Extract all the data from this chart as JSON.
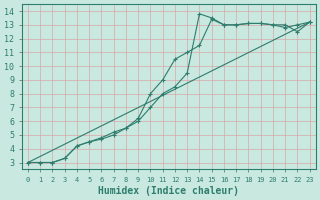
{
  "xlabel": "Humidex (Indice chaleur)",
  "ylabel": "",
  "xlim": [
    -0.5,
    23.5
  ],
  "ylim": [
    2.5,
    14.5
  ],
  "xticks": [
    0,
    1,
    2,
    3,
    4,
    5,
    6,
    7,
    8,
    9,
    10,
    11,
    12,
    13,
    14,
    15,
    16,
    17,
    18,
    19,
    20,
    21,
    22,
    23
  ],
  "yticks": [
    3,
    4,
    5,
    6,
    7,
    8,
    9,
    10,
    11,
    12,
    13,
    14
  ],
  "bg_color": "#c8e8e0",
  "grid_color": "#d8a8a8",
  "line_color": "#2e7d6d",
  "line1_x": [
    0,
    1,
    2,
    3,
    4,
    5,
    6,
    7,
    8,
    9,
    10,
    11,
    12,
    13,
    14,
    15,
    16,
    17,
    18,
    19,
    20,
    21,
    22,
    23
  ],
  "line1_y": [
    3.0,
    3.0,
    3.0,
    3.3,
    4.2,
    4.5,
    4.7,
    5.0,
    5.5,
    6.0,
    7.0,
    8.0,
    8.5,
    9.5,
    13.8,
    13.5,
    13.0,
    13.0,
    13.1,
    13.1,
    13.0,
    13.0,
    12.5,
    13.2
  ],
  "line2_x": [
    0,
    1,
    2,
    3,
    4,
    5,
    6,
    7,
    8,
    9,
    10,
    11,
    12,
    13,
    14,
    15,
    16,
    17,
    18,
    19,
    20,
    21,
    22,
    23
  ],
  "line2_y": [
    3.0,
    3.0,
    3.0,
    3.3,
    4.2,
    4.5,
    4.8,
    5.2,
    5.5,
    6.2,
    8.0,
    9.0,
    10.5,
    11.0,
    11.5,
    13.4,
    13.0,
    13.0,
    13.1,
    13.1,
    13.0,
    12.8,
    13.0,
    13.2
  ],
  "line3_x": [
    0,
    23
  ],
  "line3_y": [
    3.0,
    13.2
  ],
  "font_size_xlabel": 7,
  "font_size_yticks": 6,
  "font_size_xticks": 5
}
